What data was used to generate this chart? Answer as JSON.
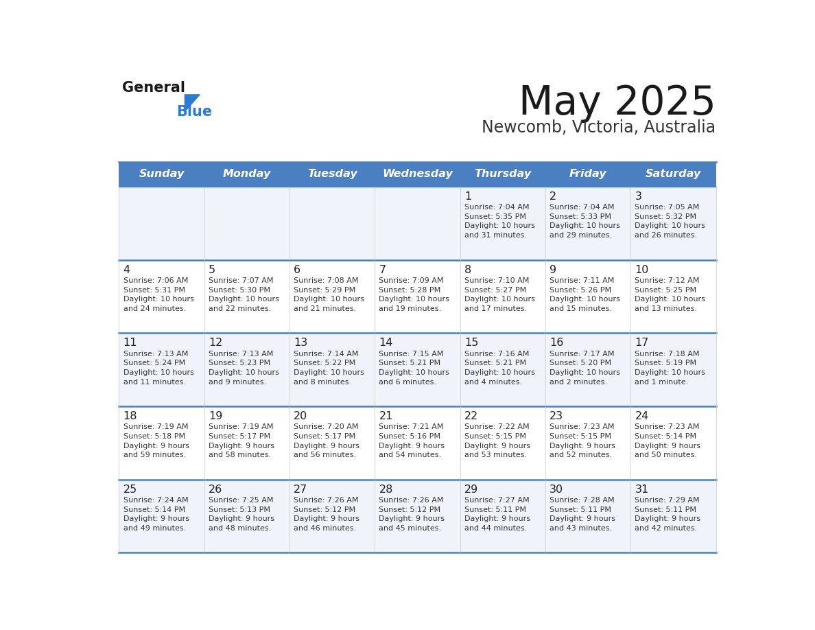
{
  "title": "May 2025",
  "subtitle": "Newcomb, Victoria, Australia",
  "header_bg_color": "#4A7FC1",
  "header_text_color": "#FFFFFF",
  "header_days": [
    "Sunday",
    "Monday",
    "Tuesday",
    "Wednesday",
    "Thursday",
    "Friday",
    "Saturday"
  ],
  "row_bg_odd": "#F0F4FA",
  "row_bg_even": "#FFFFFF",
  "cell_border_color": "#4A7FC1",
  "title_color": "#1a1a1a",
  "subtitle_color": "#333333",
  "day_num_color": "#222222",
  "info_color": "#333333",
  "logo_general_color": "#1a1a1a",
  "logo_blue_color": "#2B7CD4",
  "calendar_data": [
    [
      {
        "day": "",
        "sunrise": "",
        "sunset": "",
        "daylight": ""
      },
      {
        "day": "",
        "sunrise": "",
        "sunset": "",
        "daylight": ""
      },
      {
        "day": "",
        "sunrise": "",
        "sunset": "",
        "daylight": ""
      },
      {
        "day": "",
        "sunrise": "",
        "sunset": "",
        "daylight": ""
      },
      {
        "day": "1",
        "sunrise": "7:04 AM",
        "sunset": "5:35 PM",
        "daylight": "10 hours\nand 31 minutes."
      },
      {
        "day": "2",
        "sunrise": "7:04 AM",
        "sunset": "5:33 PM",
        "daylight": "10 hours\nand 29 minutes."
      },
      {
        "day": "3",
        "sunrise": "7:05 AM",
        "sunset": "5:32 PM",
        "daylight": "10 hours\nand 26 minutes."
      }
    ],
    [
      {
        "day": "4",
        "sunrise": "7:06 AM",
        "sunset": "5:31 PM",
        "daylight": "10 hours\nand 24 minutes."
      },
      {
        "day": "5",
        "sunrise": "7:07 AM",
        "sunset": "5:30 PM",
        "daylight": "10 hours\nand 22 minutes."
      },
      {
        "day": "6",
        "sunrise": "7:08 AM",
        "sunset": "5:29 PM",
        "daylight": "10 hours\nand 21 minutes."
      },
      {
        "day": "7",
        "sunrise": "7:09 AM",
        "sunset": "5:28 PM",
        "daylight": "10 hours\nand 19 minutes."
      },
      {
        "day": "8",
        "sunrise": "7:10 AM",
        "sunset": "5:27 PM",
        "daylight": "10 hours\nand 17 minutes."
      },
      {
        "day": "9",
        "sunrise": "7:11 AM",
        "sunset": "5:26 PM",
        "daylight": "10 hours\nand 15 minutes."
      },
      {
        "day": "10",
        "sunrise": "7:12 AM",
        "sunset": "5:25 PM",
        "daylight": "10 hours\nand 13 minutes."
      }
    ],
    [
      {
        "day": "11",
        "sunrise": "7:13 AM",
        "sunset": "5:24 PM",
        "daylight": "10 hours\nand 11 minutes."
      },
      {
        "day": "12",
        "sunrise": "7:13 AM",
        "sunset": "5:23 PM",
        "daylight": "10 hours\nand 9 minutes."
      },
      {
        "day": "13",
        "sunrise": "7:14 AM",
        "sunset": "5:22 PM",
        "daylight": "10 hours\nand 8 minutes."
      },
      {
        "day": "14",
        "sunrise": "7:15 AM",
        "sunset": "5:21 PM",
        "daylight": "10 hours\nand 6 minutes."
      },
      {
        "day": "15",
        "sunrise": "7:16 AM",
        "sunset": "5:21 PM",
        "daylight": "10 hours\nand 4 minutes."
      },
      {
        "day": "16",
        "sunrise": "7:17 AM",
        "sunset": "5:20 PM",
        "daylight": "10 hours\nand 2 minutes."
      },
      {
        "day": "17",
        "sunrise": "7:18 AM",
        "sunset": "5:19 PM",
        "daylight": "10 hours\nand 1 minute."
      }
    ],
    [
      {
        "day": "18",
        "sunrise": "7:19 AM",
        "sunset": "5:18 PM",
        "daylight": "9 hours\nand 59 minutes."
      },
      {
        "day": "19",
        "sunrise": "7:19 AM",
        "sunset": "5:17 PM",
        "daylight": "9 hours\nand 58 minutes."
      },
      {
        "day": "20",
        "sunrise": "7:20 AM",
        "sunset": "5:17 PM",
        "daylight": "9 hours\nand 56 minutes."
      },
      {
        "day": "21",
        "sunrise": "7:21 AM",
        "sunset": "5:16 PM",
        "daylight": "9 hours\nand 54 minutes."
      },
      {
        "day": "22",
        "sunrise": "7:22 AM",
        "sunset": "5:15 PM",
        "daylight": "9 hours\nand 53 minutes."
      },
      {
        "day": "23",
        "sunrise": "7:23 AM",
        "sunset": "5:15 PM",
        "daylight": "9 hours\nand 52 minutes."
      },
      {
        "day": "24",
        "sunrise": "7:23 AM",
        "sunset": "5:14 PM",
        "daylight": "9 hours\nand 50 minutes."
      }
    ],
    [
      {
        "day": "25",
        "sunrise": "7:24 AM",
        "sunset": "5:14 PM",
        "daylight": "9 hours\nand 49 minutes."
      },
      {
        "day": "26",
        "sunrise": "7:25 AM",
        "sunset": "5:13 PM",
        "daylight": "9 hours\nand 48 minutes."
      },
      {
        "day": "27",
        "sunrise": "7:26 AM",
        "sunset": "5:12 PM",
        "daylight": "9 hours\nand 46 minutes."
      },
      {
        "day": "28",
        "sunrise": "7:26 AM",
        "sunset": "5:12 PM",
        "daylight": "9 hours\nand 45 minutes."
      },
      {
        "day": "29",
        "sunrise": "7:27 AM",
        "sunset": "5:11 PM",
        "daylight": "9 hours\nand 44 minutes."
      },
      {
        "day": "30",
        "sunrise": "7:28 AM",
        "sunset": "5:11 PM",
        "daylight": "9 hours\nand 43 minutes."
      },
      {
        "day": "31",
        "sunrise": "7:29 AM",
        "sunset": "5:11 PM",
        "daylight": "9 hours\nand 42 minutes."
      }
    ]
  ]
}
